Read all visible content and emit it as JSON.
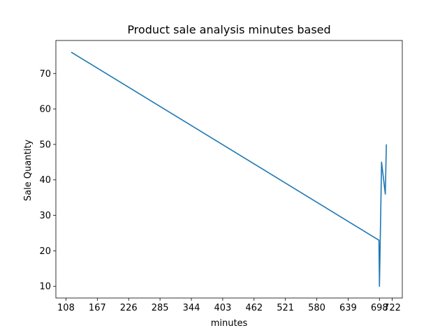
{
  "chart_data": {
    "type": "line",
    "title": "Product sale analysis minutes based",
    "xlabel": "minutes",
    "ylabel": "Sale Quantity",
    "x": [
      118,
      697,
      698,
      702,
      709,
      711
    ],
    "values": [
      76,
      23,
      10,
      45,
      36,
      50
    ],
    "xticks": [
      108,
      167,
      226,
      285,
      344,
      403,
      462,
      521,
      580,
      639,
      698,
      722
    ],
    "xtick_labels": [
      "108",
      "167",
      "226",
      "285",
      "344",
      "403",
      "462",
      "521",
      "580",
      "639",
      "698",
      "722"
    ],
    "yticks": [
      10,
      20,
      30,
      40,
      50,
      60,
      70
    ],
    "ytick_labels": [
      "10",
      "20",
      "30",
      "40",
      "50",
      "60",
      "70"
    ],
    "xlim": [
      89,
      741
    ],
    "ylim": [
      6.7,
      79.3
    ],
    "grid": false,
    "line_color": "#1f77b4"
  }
}
